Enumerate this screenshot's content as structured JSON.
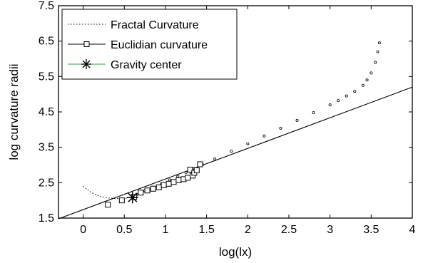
{
  "chart_data": {
    "type": "scatter",
    "title": "",
    "xlabel": "log(lx)",
    "ylabel": "log curvature radii",
    "xlim": [
      -0.3,
      4
    ],
    "ylim": [
      1.5,
      7.5
    ],
    "x_ticks": [
      0,
      0.5,
      1,
      1.5,
      2,
      2.5,
      3,
      3.5,
      4
    ],
    "x_tick_labels": [
      "0",
      "0.5",
      "1",
      "1.5",
      "2",
      "2.5",
      "3",
      "3.5",
      "4"
    ],
    "y_ticks": [
      1.5,
      2.5,
      3.5,
      4.5,
      5.5,
      6.5,
      7.5
    ],
    "y_tick_labels": [
      "1.5",
      "2.5",
      "3.5",
      "4.5",
      "5.5",
      "6.5",
      "7.5"
    ],
    "grid": false,
    "legend_position": "top-left",
    "series": [
      {
        "name": "Fractal Curvature",
        "style": "dotted",
        "color": "#000000",
        "curve_points": [
          {
            "x": 0.0,
            "y": 2.4
          },
          {
            "x": 0.1,
            "y": 2.22
          },
          {
            "x": 0.2,
            "y": 2.12
          },
          {
            "x": 0.3,
            "y": 2.07
          },
          {
            "x": 0.4,
            "y": 2.05
          },
          {
            "x": 0.5,
            "y": 2.06
          },
          {
            "x": 0.58,
            "y": 2.08
          }
        ],
        "points": [
          {
            "x": 0.65,
            "y": 2.17
          },
          {
            "x": 0.75,
            "y": 2.27
          },
          {
            "x": 0.85,
            "y": 2.37
          },
          {
            "x": 0.95,
            "y": 2.47
          },
          {
            "x": 1.05,
            "y": 2.58
          },
          {
            "x": 1.15,
            "y": 2.68
          },
          {
            "x": 1.25,
            "y": 2.79
          },
          {
            "x": 1.35,
            "y": 2.9
          },
          {
            "x": 1.45,
            "y": 3.01
          },
          {
            "x": 1.6,
            "y": 3.17
          },
          {
            "x": 1.8,
            "y": 3.39
          },
          {
            "x": 2.0,
            "y": 3.6
          },
          {
            "x": 2.2,
            "y": 3.82
          },
          {
            "x": 2.4,
            "y": 4.04
          },
          {
            "x": 2.6,
            "y": 4.26
          },
          {
            "x": 2.8,
            "y": 4.48
          },
          {
            "x": 3.0,
            "y": 4.7
          },
          {
            "x": 3.1,
            "y": 4.82
          },
          {
            "x": 3.2,
            "y": 4.95
          },
          {
            "x": 3.3,
            "y": 5.08
          },
          {
            "x": 3.4,
            "y": 5.25
          },
          {
            "x": 3.45,
            "y": 5.4
          },
          {
            "x": 3.5,
            "y": 5.6
          },
          {
            "x": 3.55,
            "y": 5.9
          },
          {
            "x": 3.58,
            "y": 6.2
          },
          {
            "x": 3.6,
            "y": 6.45
          }
        ]
      },
      {
        "name": "Euclidian curvature",
        "style": "solid",
        "color": "#000000",
        "line": [
          {
            "x": -0.3,
            "y": 1.48
          },
          {
            "x": 4.0,
            "y": 5.2
          }
        ],
        "points": [
          {
            "x": 0.3,
            "y": 1.88
          },
          {
            "x": 0.47,
            "y": 2.0
          },
          {
            "x": 0.62,
            "y": 2.1
          },
          {
            "x": 0.7,
            "y": 2.22
          },
          {
            "x": 0.78,
            "y": 2.28
          },
          {
            "x": 0.85,
            "y": 2.33
          },
          {
            "x": 0.92,
            "y": 2.37
          },
          {
            "x": 0.98,
            "y": 2.43
          },
          {
            "x": 1.04,
            "y": 2.47
          },
          {
            "x": 1.1,
            "y": 2.52
          },
          {
            "x": 1.16,
            "y": 2.57
          },
          {
            "x": 1.22,
            "y": 2.6
          },
          {
            "x": 1.27,
            "y": 2.64
          },
          {
            "x": 1.3,
            "y": 2.87
          },
          {
            "x": 1.33,
            "y": 2.7
          },
          {
            "x": 1.35,
            "y": 2.78
          },
          {
            "x": 1.38,
            "y": 2.85
          },
          {
            "x": 1.42,
            "y": 3.02
          }
        ]
      },
      {
        "name": "Gravity center",
        "style": "marker",
        "color": "#000000",
        "legend_line_color": "#2e9e3a",
        "points": [
          {
            "x": 0.6,
            "y": 2.08
          }
        ]
      }
    ]
  }
}
